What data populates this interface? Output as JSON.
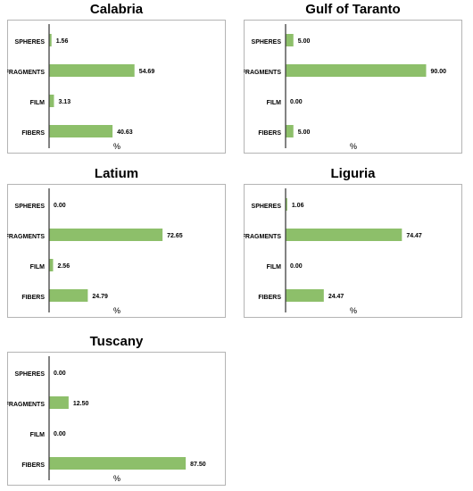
{
  "chart_data": [
    {
      "type": "bar",
      "title": "Calabria",
      "categories": [
        "SPHERES",
        "FRAGMENTS",
        "FILM",
        "FIBERS"
      ],
      "values": [
        1.56,
        54.69,
        3.13,
        40.63
      ],
      "labels": [
        "1.56",
        "54.69",
        "3.13",
        "40.63"
      ],
      "xlabel": "%",
      "xlim": [
        0,
        100
      ],
      "grid": false,
      "legend": "none",
      "bar_color": "#8dbf6a"
    },
    {
      "type": "bar",
      "title": "Gulf of Taranto",
      "categories": [
        "SPHERES",
        "FRAGMENTS",
        "FILM",
        "FIBERS"
      ],
      "values": [
        5.0,
        90.0,
        0.0,
        5.0
      ],
      "labels": [
        "5.00",
        "90.00",
        "0.00",
        "5.00"
      ],
      "xlabel": "%",
      "xlim": [
        0,
        100
      ],
      "grid": false,
      "legend": "none",
      "bar_color": "#8dbf6a"
    },
    {
      "type": "bar",
      "title": "Latium",
      "categories": [
        "SPHERES",
        "FRAGMENTS",
        "FILM",
        "FIBERS"
      ],
      "values": [
        0.0,
        72.65,
        2.56,
        24.79
      ],
      "labels": [
        "0.00",
        "72.65",
        "2.56",
        "24.79"
      ],
      "xlabel": "%",
      "xlim": [
        0,
        100
      ],
      "grid": false,
      "legend": "none",
      "bar_color": "#8dbf6a"
    },
    {
      "type": "bar",
      "title": "Liguria",
      "categories": [
        "SPHERES",
        "FRAGMENTS",
        "FILM",
        "FIBERS"
      ],
      "values": [
        1.06,
        74.47,
        0.0,
        24.47
      ],
      "labels": [
        "1.06",
        "74.47",
        "0.00",
        "24.47"
      ],
      "xlabel": "%",
      "xlim": [
        0,
        100
      ],
      "grid": false,
      "legend": "none",
      "bar_color": "#8dbf6a"
    },
    {
      "type": "bar",
      "title": "Tuscany",
      "categories": [
        "SPHERES",
        "FRAGMENTS",
        "FILM",
        "FIBERS"
      ],
      "values": [
        0.0,
        12.5,
        0.0,
        87.5
      ],
      "labels": [
        "0.00",
        "12.50",
        "0.00",
        "87.50"
      ],
      "xlabel": "%",
      "xlim": [
        0,
        100
      ],
      "grid": false,
      "legend": "none",
      "bar_color": "#8dbf6a"
    }
  ]
}
